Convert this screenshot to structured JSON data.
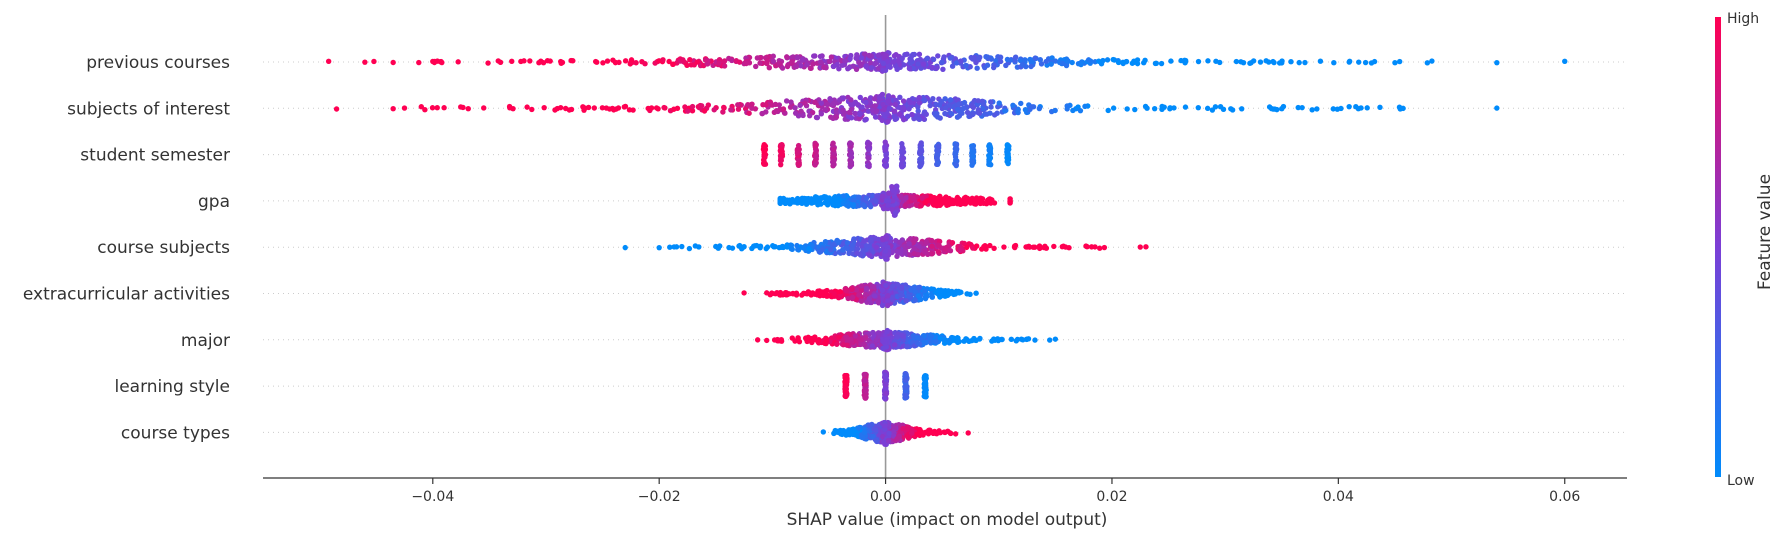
{
  "chart_data": {
    "type": "scatter",
    "subtype": "shap-beeswarm",
    "xlabel": "SHAP value (impact on model output)",
    "xlim": [
      -0.055,
      0.0655
    ],
    "xticks": [
      -0.04,
      -0.02,
      0.0,
      0.02,
      0.04,
      0.06
    ],
    "xtick_labels": [
      "−0.04",
      "−0.02",
      "0.00",
      "0.02",
      "0.04",
      "0.06"
    ],
    "colorbar": {
      "label": "Feature value",
      "high_label": "High",
      "low_label": "Low",
      "low_color": "#008bfb",
      "mid_color": "#7b3fd6",
      "high_color": "#ff0052"
    },
    "features": [
      {
        "name": "previous courses",
        "x_min": -0.0495,
        "x_max": 0.06,
        "core_width": 0.018,
        "n": 520,
        "color_trend": "high_left",
        "vmax": 8,
        "outliers": [
          -0.0492,
          -0.046,
          -0.0452,
          -0.0435,
          -0.04,
          -0.0392,
          0.045,
          0.0432,
          0.0418,
          0.041,
          0.0396,
          0.054,
          0.06
        ]
      },
      {
        "name": "subjects of interest",
        "x_min": -0.0485,
        "x_max": 0.054,
        "core_width": 0.013,
        "n": 520,
        "color_trend": "high_left",
        "vmax": 12,
        "outliers": [
          -0.0485,
          -0.0435,
          -0.0425,
          -0.039,
          -0.0355,
          -0.0332,
          -0.029,
          0.0305,
          0.035,
          0.0368,
          0.0381,
          0.042,
          0.054
        ]
      },
      {
        "name": "student semester",
        "x_min": -0.0107,
        "x_max": 0.0108,
        "core_width": 0.011,
        "n": 400,
        "color_trend": "high_left",
        "vmax": 11,
        "stacks": [
          -0.0107,
          -0.0092,
          -0.0077,
          -0.0062,
          -0.0046,
          -0.0031,
          -0.0015,
          0.0,
          0.0015,
          0.0031,
          0.0046,
          0.0062,
          0.0077,
          0.0092,
          0.0108
        ]
      },
      {
        "name": "gpa",
        "x_min": -0.0093,
        "x_max": 0.011,
        "core_width": 0.01,
        "n": 480,
        "color_trend": "high_right",
        "vmax": 6,
        "center_spike": 0.0008
      },
      {
        "name": "course subjects",
        "x_min": -0.023,
        "x_max": 0.023,
        "core_width": 0.007,
        "n": 460,
        "color_trend": "high_right",
        "vmax": 10,
        "outliers": [
          -0.023,
          -0.02,
          -0.018,
          -0.0165,
          -0.015,
          -0.0125,
          0.0125,
          0.014,
          0.0185,
          0.0225,
          0.023
        ]
      },
      {
        "name": "extracurricular activities",
        "x_min": -0.0125,
        "x_max": 0.008,
        "core_width": 0.0045,
        "n": 420,
        "color_trend": "high_left",
        "vmax": 10,
        "outliers": [
          -0.0125,
          -0.0105,
          -0.01,
          0.0072,
          0.008
        ]
      },
      {
        "name": "major",
        "x_min": -0.0115,
        "x_max": 0.015,
        "core_width": 0.006,
        "n": 400,
        "color_trend": "high_left",
        "vmax": 8,
        "outliers": [
          -0.0113,
          -0.0105,
          -0.0098,
          0.0103,
          0.012,
          0.0132,
          0.0145,
          0.015
        ]
      },
      {
        "name": "learning style",
        "x_min": -0.0035,
        "x_max": 0.0035,
        "core_width": 0.0035,
        "n": 260,
        "color_trend": "high_left",
        "vmax": 12,
        "stacks": [
          -0.0035,
          -0.0018,
          0.0,
          0.0018,
          0.0035
        ]
      },
      {
        "name": "course types",
        "x_min": -0.0055,
        "x_max": 0.0073,
        "core_width": 0.0028,
        "n": 360,
        "color_trend": "high_right",
        "vmax": 10,
        "outliers": [
          -0.0055,
          0.0073
        ]
      }
    ]
  }
}
